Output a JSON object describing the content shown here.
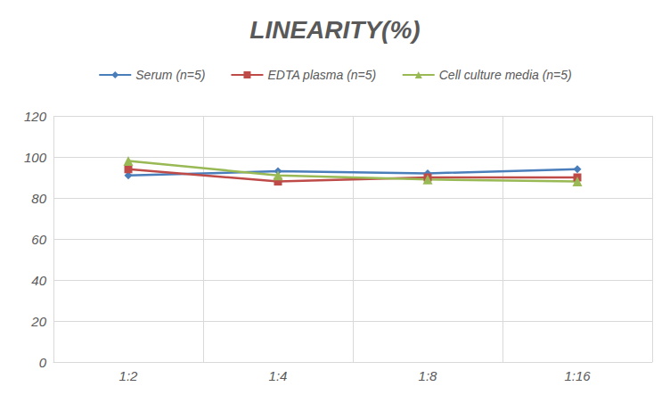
{
  "chart_data": {
    "type": "line",
    "title": "LINEARITY(%)",
    "categories": [
      "1:2",
      "1:4",
      "1:8",
      "1:16"
    ],
    "series": [
      {
        "name": "Serum (n=5)",
        "color": "#4a7ebb",
        "marker": "diamond",
        "values": [
          91,
          93,
          92,
          94
        ]
      },
      {
        "name": "EDTA plasma (n=5)",
        "color": "#be4b48",
        "marker": "square",
        "values": [
          94,
          88,
          90,
          90
        ]
      },
      {
        "name": "Cell culture media (n=5)",
        "color": "#98b954",
        "marker": "triangle",
        "values": [
          98,
          91,
          89,
          88
        ]
      }
    ],
    "ylim": [
      0,
      120
    ],
    "yticks": [
      0,
      20,
      40,
      60,
      80,
      100,
      120
    ],
    "grid": true,
    "legend": "top"
  }
}
